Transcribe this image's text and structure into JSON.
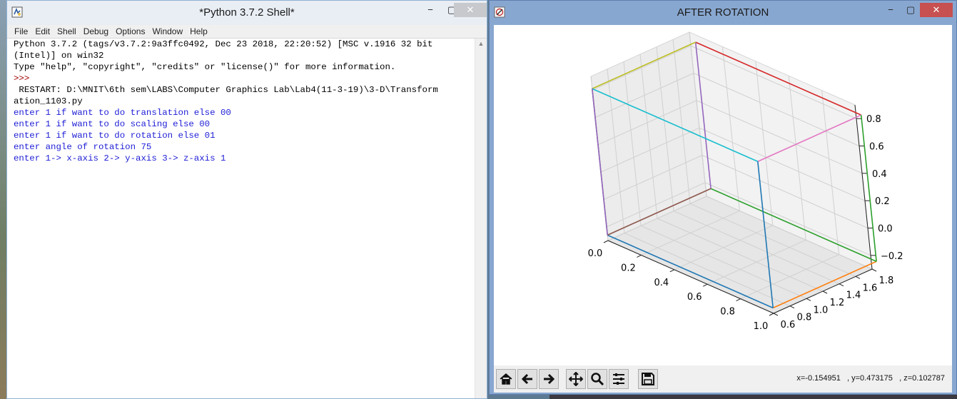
{
  "shell": {
    "title": "*Python 3.7.2 Shell*",
    "minimize": "−",
    "maximize": "▢",
    "close": "✕",
    "menu": [
      "File",
      "Edit",
      "Shell",
      "Debug",
      "Options",
      "Window",
      "Help"
    ],
    "lines": [
      {
        "text": "Python 3.7.2 (tags/v3.7.2:9a3ffc0492, Dec 23 2018, 22:20:52) [MSC v.1916 32 bit",
        "style": "black"
      },
      {
        "text": "(Intel)] on win32",
        "style": "black"
      },
      {
        "text": "Type \"help\", \"copyright\", \"credits\" or \"license()\" for more information.",
        "style": "black"
      },
      {
        "text": ">>>",
        "style": "red"
      },
      {
        "text": " RESTART: D:\\MNIT\\6th sem\\LABS\\Computer Graphics Lab\\Lab4(11-3-19)\\3-D\\Transform",
        "style": "black"
      },
      {
        "text": "ation_1103.py",
        "style": "black"
      },
      {
        "text": "enter 1 if want to do translation else 00",
        "style": "blue"
      },
      {
        "text": "enter 1 if want to do scaling else 00",
        "style": "blue"
      },
      {
        "text": "enter 1 if want to do rotation else 01",
        "style": "blue"
      },
      {
        "text": "enter angle of rotation 75",
        "style": "blue"
      },
      {
        "text": "enter 1-> x-axis 2-> y-axis 3-> z-axis 1",
        "style": "blue"
      }
    ]
  },
  "figure": {
    "title": "AFTER ROTATION",
    "minimize": "−",
    "maximize": "▢",
    "close": "✕",
    "coords": "x=-0.154951   , y=0.473175   , z=0.102787",
    "toolbar_icons": [
      "home-icon",
      "back-arrow-icon",
      "forward-arrow-icon",
      "pan-icon",
      "zoom-icon",
      "configure-subplots-icon",
      "save-icon"
    ]
  },
  "chart_data": {
    "type": "line",
    "title": "AFTER ROTATION",
    "projection": "3d",
    "x_ticks": [
      "0.0",
      "0.2",
      "0.4",
      "0.6",
      "0.8",
      "1.0"
    ],
    "y_ticks": [
      "0.6",
      "0.8",
      "1.0",
      "1.2",
      "1.4",
      "1.6",
      "1.8"
    ],
    "z_ticks": [
      "−0.2",
      "0.0",
      "0.2",
      "0.4",
      "0.6",
      "0.8"
    ],
    "xlim": [
      0.0,
      1.0
    ],
    "ylim": [
      0.6,
      1.8
    ],
    "zlim": [
      -0.3,
      0.9
    ],
    "grid": true,
    "series": [
      {
        "color": "#1f77b4",
        "points": [
          [
            0.0,
            0.6,
            -0.26
          ],
          [
            1.0,
            0.6,
            -0.26
          ]
        ]
      },
      {
        "color": "#ff7f0e",
        "points": [
          [
            1.0,
            0.6,
            -0.26
          ],
          [
            1.0,
            1.86,
            -0.26
          ]
        ]
      },
      {
        "color": "#2ca02c",
        "points": [
          [
            0.0,
            1.86,
            -0.26
          ],
          [
            1.0,
            1.86,
            -0.26
          ]
        ]
      },
      {
        "color": "#d62728",
        "points": [
          [
            0.0,
            1.86,
            0.81
          ],
          [
            1.0,
            1.86,
            0.81
          ]
        ]
      },
      {
        "color": "#9467bd",
        "points": [
          [
            0.0,
            1.86,
            -0.26
          ],
          [
            0.0,
            1.86,
            0.81
          ]
        ]
      },
      {
        "color": "#8c564b",
        "points": [
          [
            0.0,
            1.86,
            -0.26
          ],
          [
            0.0,
            0.6,
            -0.26
          ]
        ]
      },
      {
        "color": "#e377c2",
        "points": [
          [
            1.0,
            1.86,
            0.81
          ],
          [
            1.0,
            0.6,
            0.81
          ]
        ]
      },
      {
        "color": "#7f7f7f",
        "points": [
          [
            0.0,
            0.6,
            -0.26
          ],
          [
            0.0,
            0.6,
            0.81
          ]
        ]
      },
      {
        "color": "#bcbd22",
        "points": [
          [
            0.0,
            0.6,
            0.81
          ],
          [
            0.0,
            1.86,
            0.81
          ]
        ]
      },
      {
        "color": "#17becf",
        "points": [
          [
            0.0,
            0.6,
            0.81
          ],
          [
            1.0,
            0.6,
            0.81
          ]
        ]
      },
      {
        "color": "#1f77b4",
        "points": [
          [
            1.0,
            0.6,
            -0.26
          ],
          [
            1.0,
            0.6,
            0.81
          ]
        ]
      },
      {
        "color": "#9467bd",
        "points": [
          [
            0.0,
            0.6,
            -0.26
          ],
          [
            0.0,
            0.6,
            0.81
          ]
        ]
      },
      {
        "color": "#2ca02c",
        "points": [
          [
            1.0,
            1.86,
            -0.26
          ],
          [
            1.0,
            1.86,
            0.81
          ]
        ]
      }
    ]
  }
}
